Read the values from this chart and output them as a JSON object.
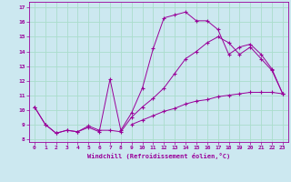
{
  "xlabel": "Windchill (Refroidissement éolien,°C)",
  "background_color": "#cce8f0",
  "line_color": "#990099",
  "grid_color": "#aaddcc",
  "xlim": [
    -0.5,
    23.5
  ],
  "ylim": [
    7.8,
    17.4
  ],
  "yticks": [
    8,
    9,
    10,
    11,
    12,
    13,
    14,
    15,
    16,
    17
  ],
  "xticks": [
    0,
    1,
    2,
    3,
    4,
    5,
    6,
    7,
    8,
    9,
    10,
    11,
    12,
    13,
    14,
    15,
    16,
    17,
    18,
    19,
    20,
    21,
    22,
    23
  ],
  "line1_x": [
    0,
    1,
    2,
    3,
    4,
    5,
    6,
    7,
    8,
    9,
    10,
    11,
    12,
    13,
    14,
    15,
    16,
    17,
    18,
    19,
    20,
    21,
    22,
    23
  ],
  "line1_y": [
    10.2,
    9.0,
    8.4,
    8.6,
    8.5,
    8.8,
    8.5,
    12.1,
    8.6,
    9.8,
    11.5,
    14.2,
    16.3,
    16.5,
    16.7,
    16.1,
    16.1,
    15.5,
    13.8,
    14.3,
    14.5,
    13.8,
    12.8,
    11.1
  ],
  "line2_x": [
    0,
    1,
    2,
    3,
    4,
    5,
    6,
    7,
    8,
    9,
    10,
    11,
    12,
    13,
    14,
    15,
    16,
    17,
    18,
    19,
    20,
    21,
    22,
    23
  ],
  "line2_y": [
    10.2,
    9.0,
    8.4,
    8.6,
    8.5,
    8.9,
    8.6,
    8.6,
    8.5,
    9.5,
    10.2,
    10.8,
    11.5,
    12.5,
    13.5,
    14.0,
    14.6,
    15.0,
    14.6,
    13.8,
    14.3,
    13.5,
    12.7,
    11.1
  ],
  "line3_x": [
    0,
    1,
    2,
    3,
    4,
    5,
    6,
    7,
    8,
    9,
    10,
    11,
    12,
    13,
    14,
    15,
    16,
    17,
    18,
    19,
    20,
    21,
    22,
    23
  ],
  "line3_y": [
    null,
    null,
    null,
    null,
    null,
    null,
    null,
    null,
    null,
    9.0,
    9.3,
    9.6,
    9.9,
    10.1,
    10.4,
    10.6,
    10.7,
    10.9,
    11.0,
    11.1,
    11.2,
    11.2,
    11.2,
    11.1
  ]
}
